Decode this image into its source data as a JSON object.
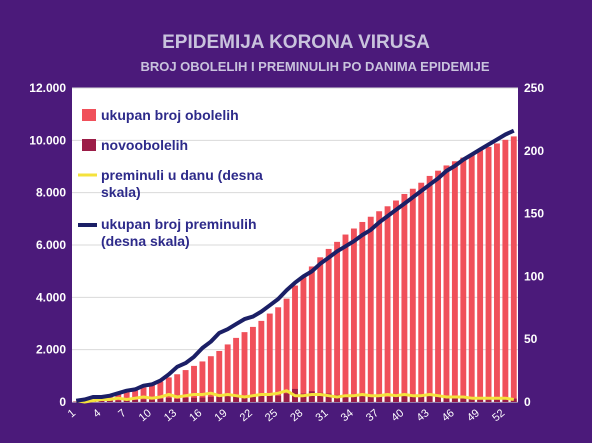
{
  "chart_data": {
    "type": "bar",
    "title": "EPIDEMIJA KORONA VIRUSA",
    "subtitle": "BROJ OBOLELIH I PREMINULIH PO DANIMA EPIDEMIJE",
    "y_left": {
      "ylim": [
        0,
        12000
      ],
      "ticks": [
        "0",
        "2.000",
        "4.000",
        "6.000",
        "8.000",
        "10.000",
        "12.000"
      ]
    },
    "y_right": {
      "ylim": [
        0,
        250
      ],
      "ticks": [
        "0",
        "50",
        "100",
        "150",
        "200",
        "250"
      ]
    },
    "x_tick_labels": [
      "1",
      "4",
      "7",
      "10",
      "13",
      "16",
      "19",
      "22",
      "25",
      "28",
      "31",
      "34",
      "37",
      "40",
      "43",
      "46",
      "49",
      "52"
    ],
    "days": [
      1,
      2,
      3,
      4,
      5,
      6,
      7,
      8,
      9,
      10,
      11,
      12,
      13,
      14,
      15,
      16,
      17,
      18,
      19,
      20,
      21,
      22,
      23,
      24,
      25,
      26,
      27,
      28,
      29,
      30,
      31,
      32,
      33,
      34,
      35,
      36,
      37,
      38,
      39,
      40,
      41,
      42,
      43,
      44,
      45,
      46,
      47,
      48,
      49,
      50,
      51,
      52,
      53
    ],
    "series": [
      {
        "name": "ukupan broj obolelih",
        "axis": "left",
        "kind": "bar",
        "color": "#f0505a",
        "values": [
          20,
          50,
          100,
          180,
          260,
          320,
          380,
          450,
          560,
          650,
          780,
          940,
          1060,
          1220,
          1380,
          1550,
          1750,
          1950,
          2200,
          2450,
          2670,
          2870,
          3100,
          3380,
          3620,
          3950,
          4450,
          4770,
          5180,
          5530,
          5850,
          6120,
          6400,
          6630,
          6880,
          7080,
          7290,
          7480,
          7700,
          7950,
          8150,
          8380,
          8640,
          8840,
          9040,
          9200,
          9340,
          9480,
          9620,
          9750,
          9880,
          10020,
          10150
        ]
      },
      {
        "name": "novoobolelih",
        "axis": "left",
        "kind": "bar",
        "color": "#9b1d47",
        "values": [
          15,
          20,
          30,
          50,
          70,
          60,
          70,
          80,
          100,
          90,
          130,
          160,
          120,
          160,
          160,
          170,
          200,
          200,
          250,
          250,
          220,
          200,
          230,
          280,
          240,
          330,
          500,
          320,
          410,
          350,
          320,
          270,
          280,
          230,
          250,
          200,
          210,
          190,
          220,
          250,
          200,
          230,
          260,
          200,
          200,
          160,
          140,
          140,
          140,
          130,
          130,
          140,
          130
        ]
      },
      {
        "name": "preminuli u danu (desna skala)",
        "axis": "right",
        "kind": "line",
        "color": "#f4e23c",
        "values": [
          1,
          0,
          1,
          2,
          2,
          3,
          2,
          3,
          4,
          3,
          4,
          6,
          4,
          5,
          6,
          6,
          7,
          5,
          6,
          5,
          4,
          5,
          6,
          6,
          7,
          9,
          5,
          5,
          6,
          6,
          5,
          4,
          5,
          5,
          6,
          5,
          5,
          6,
          5,
          6,
          5,
          5,
          6,
          5,
          4,
          4,
          4,
          3,
          3,
          3,
          3,
          3,
          2
        ]
      },
      {
        "name": "ukupan broj preminulih (desna skala)",
        "axis": "right",
        "kind": "line",
        "color": "#1b1f66",
        "values": [
          1,
          2,
          4,
          4,
          5,
          7,
          9,
          10,
          13,
          14,
          17,
          22,
          28,
          31,
          36,
          43,
          48,
          55,
          58,
          62,
          66,
          68,
          72,
          77,
          82,
          89,
          95,
          100,
          104,
          110,
          115,
          120,
          124,
          128,
          133,
          137,
          143,
          148,
          153,
          158,
          163,
          168,
          173,
          178,
          184,
          188,
          193,
          197,
          201,
          205,
          209,
          213,
          216
        ]
      }
    ],
    "legend_placement": "top-left inside plot",
    "grid": true,
    "legend_lines": {
      "s1": [
        "ukupan broj obolelih"
      ],
      "s2": [
        "novoobolelih"
      ],
      "s3": [
        "preminuli u danu (desna",
        "skala)"
      ],
      "s4": [
        "ukupan broj preminulih",
        "(desna skala)"
      ]
    }
  }
}
